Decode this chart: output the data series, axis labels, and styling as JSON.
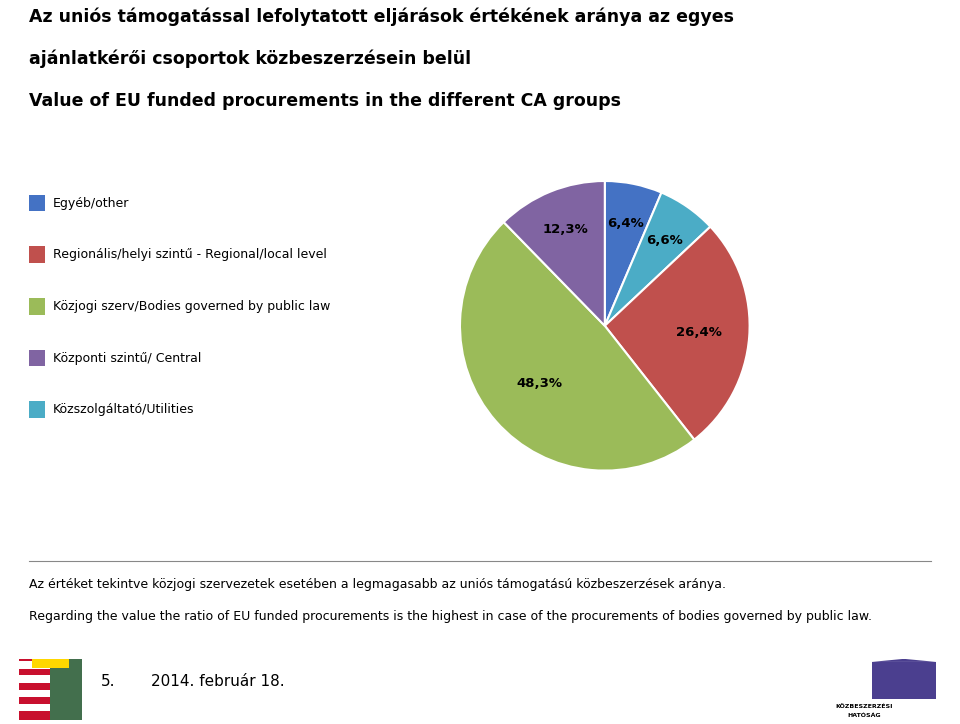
{
  "title_line1": "Az uniós támogatással lefolytatott eljárások értékének aránya az egyes",
  "title_line2": "ajánlatkérői csoportok közbeszerzésein belül",
  "title_line3": "Value of EU funded procurements in the different CA groups",
  "slices": [
    6.4,
    6.6,
    26.4,
    48.3,
    12.3
  ],
  "labels": [
    "6,4%",
    "6,6%",
    "26,4%",
    "48,3%",
    "12,3%"
  ],
  "pie_colors": [
    "#4472C4",
    "#4BACC6",
    "#C0504D",
    "#9BBB59",
    "#8064A2"
  ],
  "legend_labels": [
    "Egyéb/other",
    "Regionális/helyi szintű - Regional/local level",
    "Közjogi szerv/Bodies governed by public law",
    "Központi szintű/ Central",
    "Közszolgáltató/Utilities"
  ],
  "legend_colors": [
    "#4472C4",
    "#C0504D",
    "#9BBB59",
    "#8064A2",
    "#4BACC6"
  ],
  "footer_hu": "Az értéket tekintve közjogi szervezetek esetében a legmagasabb az uniós támogatású közbeszerzések aránya.",
  "footer_en": "Regarding the value the ratio of EU funded procurements is the highest in case of the procurements of bodies governed by public law.",
  "page_num": "5.",
  "date": "2014. február 18.",
  "bg_color": "#FFFFFF",
  "text_color": "#000000",
  "title_fontsize": 12.5,
  "legend_fontsize": 9,
  "label_fontsize": 9.5,
  "footer_fontsize": 9
}
